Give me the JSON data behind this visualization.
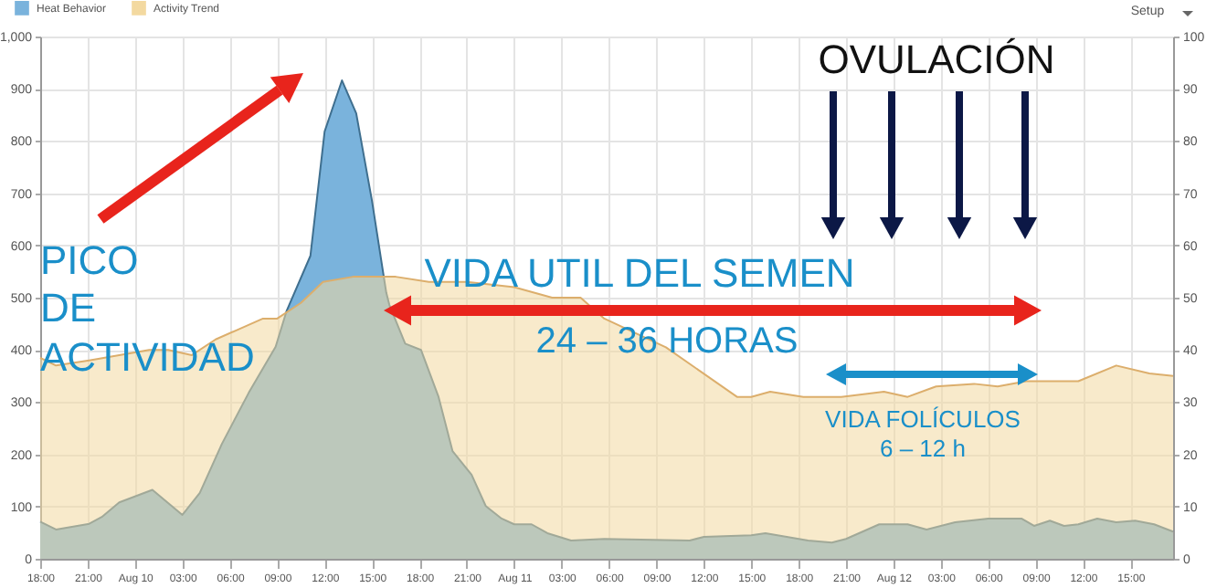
{
  "chart_data": {
    "type": "area",
    "x": [
      "--08-09T18:00",
      "--08-09T19:00",
      "--08-09T21:06",
      "--08-09T21:54",
      "--08-09T23:00",
      "--08-10T01:06",
      "--08-10T03:00",
      "--08-10T04:06",
      "--08-10T05:30",
      "--08-10T07:12",
      "--08-10T08:54",
      "--08-10T09:36",
      "--08-10T11:06",
      "--08-10T12:00",
      "--08-10T13:06",
      "--08-10T14:00",
      "--08-10T15:00",
      "--08-10T15:54",
      "--08-10T16:06",
      "--08-10T17:06",
      "--08-10T18:06",
      "--08-10T19:12",
      "--08-10T20:06",
      "--08-10T21:18",
      "--08-10T22:12",
      "--08-10T23:12",
      "--08-11T00:00",
      "--08-11T01:06",
      "--08-11T02:06",
      "--08-11T03:36",
      "--08-11T05:42",
      "--08-11T11:06",
      "--08-11T12:00",
      "--08-11T15:00",
      "--08-11T15:54",
      "--08-11T18:36",
      "--08-11T20:06",
      "--08-11T21:00",
      "--08-11T23:06",
      "--08-12T00:54",
      "--08-12T02:06",
      "--08-12T03:54",
      "--08-12T06:00",
      "--08-12T08:06",
      "--08-12T08:54",
      "--08-12T09:54",
      "--08-12T10:48",
      "--08-12T11:42",
      "--08-12T12:54",
      "--08-12T14:06",
      "--08-12T15:18",
      "--08-12T16:30",
      "--08-12T17:42"
    ],
    "series": [
      {
        "name": "Heat Behavior",
        "color": "#7ab3dc",
        "values": [
          71,
          56,
          67,
          80,
          108,
          132,
          84,
          126,
          220,
          318,
          406,
          475,
          580,
          818,
          916,
          853,
          685,
          510,
          486,
          412,
          400,
          311,
          206,
          161,
          101,
          77,
          66,
          66,
          49,
          35,
          38,
          35,
          42,
          45,
          49,
          35,
          31,
          38,
          66,
          66,
          56,
          70,
          77,
          77,
          63,
          73,
          63,
          66,
          77,
          70,
          73,
          66,
          52
        ]
      },
      {
        "name": "Activity Trend",
        "color": "#f3d9a0",
        "axis": "y2",
        "x": [
          "--08-09T18:00",
          "--08-09T19:00",
          "--08-09T21:06",
          "--08-09T23:00",
          "--08-10T00:54",
          "--08-10T02:06",
          "--08-10T03:36",
          "--08-10T05:06",
          "--08-10T06:36",
          "--08-10T08:06",
          "--08-10T09:00",
          "--08-10T10:30",
          "--08-10T11:54",
          "--08-10T13:48",
          "--08-10T16:30",
          "--08-10T18:36",
          "--08-10T21:00",
          "--08-11T00:00",
          "--08-11T02:24",
          "--08-11T04:12",
          "--08-11T05:42",
          "--08-11T09:36",
          "--08-11T14:06",
          "--08-11T15:00",
          "--08-11T16:12",
          "--08-11T18:18",
          "--08-11T20:42",
          "--08-11T23:24",
          "--08-12T00:54",
          "--08-12T02:42",
          "--08-12T05:06",
          "--08-12T06:36",
          "--08-12T08:24",
          "--08-12T11:42",
          "--08-12T14:06",
          "--08-12T16:12",
          "--08-12T17:42"
        ],
        "values": [
          38.5,
          37,
          38,
          39,
          40,
          40,
          39,
          42,
          44,
          46,
          46,
          49,
          53,
          54,
          54,
          53,
          53,
          52,
          50,
          50,
          46,
          40.5,
          31,
          31,
          32,
          31,
          31,
          32,
          31,
          33,
          33.5,
          33,
          34,
          34,
          37,
          35.5,
          35
        ]
      }
    ],
    "xlim": [
      "--08-09T18:00",
      "--08-12T17:42"
    ],
    "xticks": [
      {
        "value": "--08-09T18:00",
        "label": "18:00"
      },
      {
        "value": "--08-09T21:00",
        "label": "21:00"
      },
      {
        "value": "--08-10T00:00",
        "label": "Aug 10"
      },
      {
        "value": "--08-10T03:00",
        "label": "03:00"
      },
      {
        "value": "--08-10T06:00",
        "label": "06:00"
      },
      {
        "value": "--08-10T09:00",
        "label": "09:00"
      },
      {
        "value": "--08-10T12:00",
        "label": "12:00"
      },
      {
        "value": "--08-10T15:00",
        "label": "15:00"
      },
      {
        "value": "--08-10T18:00",
        "label": "18:00"
      },
      {
        "value": "--08-10T21:00",
        "label": "21:00"
      },
      {
        "value": "--08-11T00:00",
        "label": "Aug 11"
      },
      {
        "value": "--08-11T03:00",
        "label": "03:00"
      },
      {
        "value": "--08-11T06:00",
        "label": "06:00"
      },
      {
        "value": "--08-11T09:00",
        "label": "09:00"
      },
      {
        "value": "--08-11T12:00",
        "label": "12:00"
      },
      {
        "value": "--08-11T15:00",
        "label": "15:00"
      },
      {
        "value": "--08-11T18:00",
        "label": "18:00"
      },
      {
        "value": "--08-11T21:00",
        "label": "21:00"
      },
      {
        "value": "--08-12T00:00",
        "label": "Aug 12"
      },
      {
        "value": "--08-12T03:00",
        "label": "03:00"
      },
      {
        "value": "--08-12T06:00",
        "label": "06:00"
      },
      {
        "value": "--08-12T09:00",
        "label": "09:00"
      },
      {
        "value": "--08-12T12:00",
        "label": "12:00"
      },
      {
        "value": "--08-12T15:00",
        "label": "15:00"
      }
    ],
    "ylim": [
      0,
      1000
    ],
    "yticks": [
      0,
      100,
      200,
      300,
      400,
      500,
      600,
      700,
      800,
      900,
      {
        "value": 1000,
        "label": "1,000"
      }
    ],
    "y2lim": [
      0,
      100
    ],
    "y2ticks": [
      0,
      10,
      20,
      30,
      40,
      50,
      60,
      70,
      80,
      90,
      100
    ],
    "grid": true,
    "legend": "top left",
    "marker": "none",
    "annotations": [
      "PICO\nDE\nACTIVIDAD",
      "VIDA UTIL DEL SEMEN",
      "24 – 36 HORAS",
      "OVULACIÓN",
      "VIDA FOLÍCULOS",
      "6 – 12 h",
      "Setup"
    ]
  }
}
